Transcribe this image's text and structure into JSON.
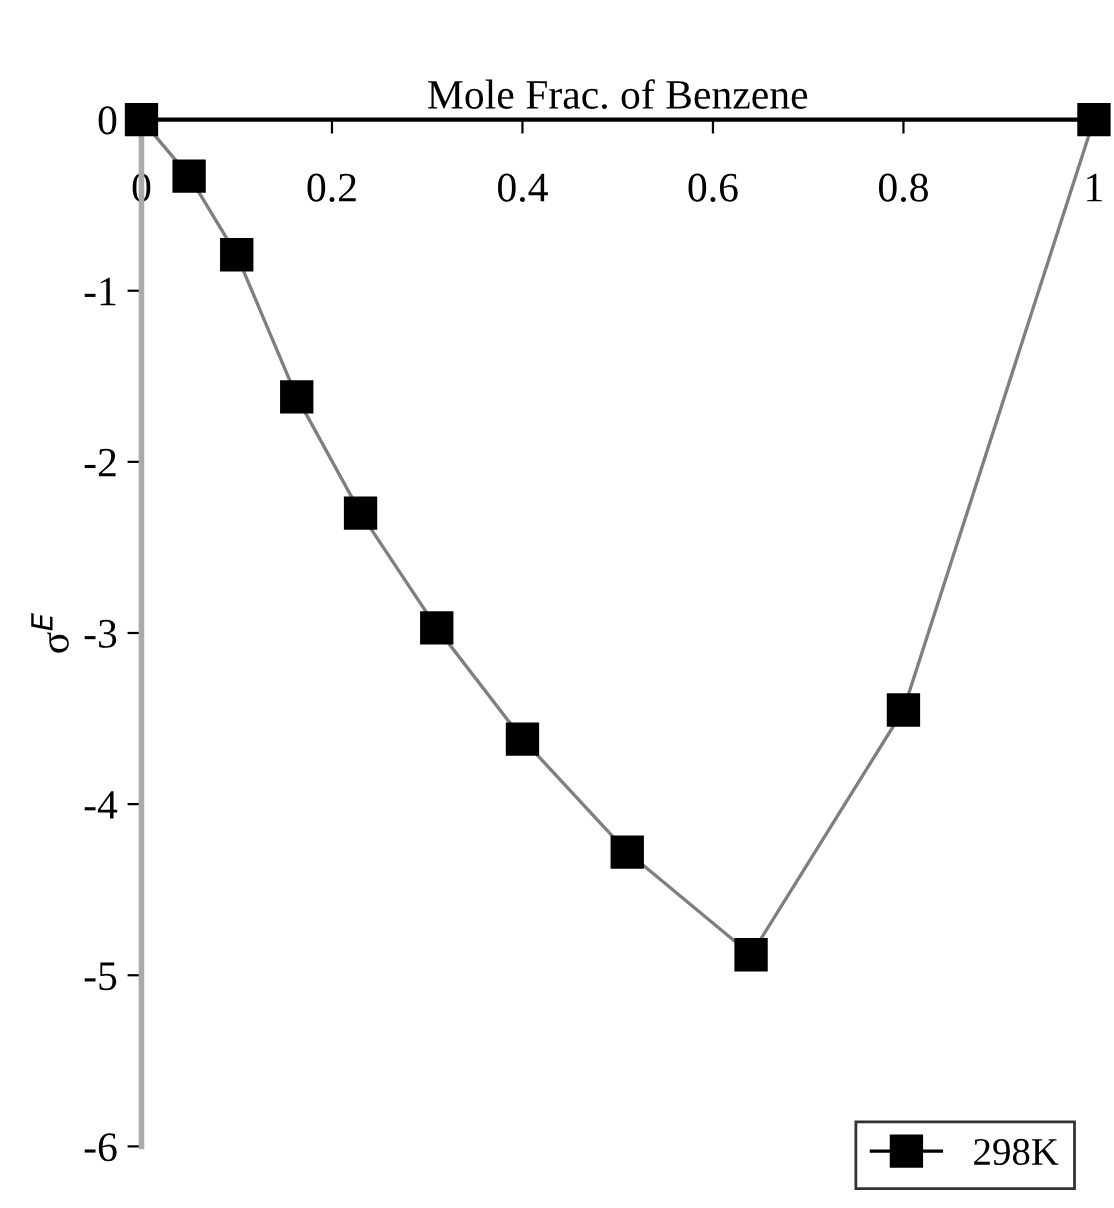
{
  "chart_data": {
    "type": "line",
    "xlabel": "Mole Frac. of Benzene",
    "ylabel": "σ$^{E}$",
    "series": [
      {
        "name": "298K",
        "color": "#000000",
        "x": [
          0,
          0.05,
          0.1,
          0.163,
          0.23,
          0.31,
          0.4,
          0.51,
          0.64,
          0.8,
          1
        ],
        "values": [
          0,
          -0.33,
          -0.79,
          -1.62,
          -2.3,
          -2.97,
          -3.62,
          -4.28,
          -4.88,
          -3.45,
          0
        ]
      }
    ],
    "xlim": [
      0,
      1
    ],
    "xticks": [
      0,
      0.2,
      0.4,
      0.6,
      0.8,
      1
    ],
    "ylim": [
      -6,
      0
    ],
    "yticks": [
      -6,
      -5,
      -4,
      -3,
      -2,
      -1,
      0
    ],
    "marker": "square",
    "grid": false,
    "legend": "bottom right"
  }
}
